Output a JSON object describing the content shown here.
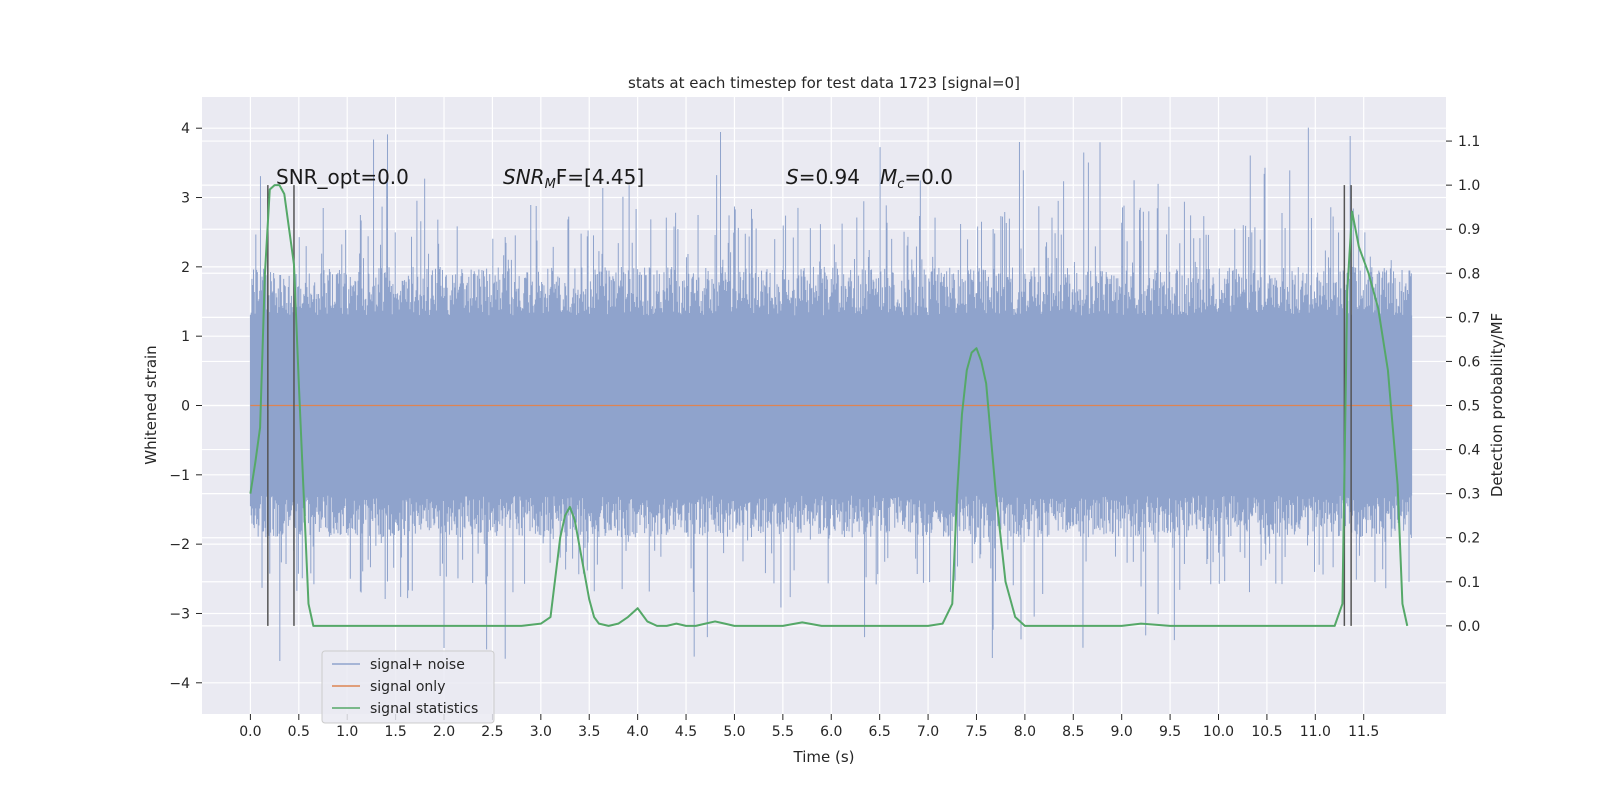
{
  "chart_data": {
    "type": "line",
    "title": "stats at each timestep for test data 1723 [signal=0]",
    "xlabel": "Time (s)",
    "ylabel_left": "Whitened strain",
    "ylabel_right": "Detection probability/MF",
    "xlim": [
      -0.5,
      12.35
    ],
    "ylim_left": [
      -4.45,
      4.45
    ],
    "ylim_right": [
      -0.2,
      1.2
    ],
    "x_ticks": [
      0.0,
      0.5,
      1.0,
      1.5,
      2.0,
      2.5,
      3.0,
      3.5,
      4.0,
      4.5,
      5.0,
      5.5,
      6.0,
      6.5,
      7.0,
      7.5,
      8.0,
      8.5,
      9.0,
      9.5,
      10.0,
      10.5,
      11.0,
      11.5
    ],
    "x_tick_labels": [
      "0.0",
      "0.5",
      "1.0",
      "1.5",
      "2.0",
      "2.5",
      "3.0",
      "3.5",
      "4.0",
      "4.5",
      "5.0",
      "5.5",
      "6.0",
      "6.5",
      "7.0",
      "7.5",
      "8.0",
      "8.5",
      "9.0",
      "9.5",
      "10.0",
      "10.5",
      "11.0",
      "11.5"
    ],
    "y_left_ticks": [
      4,
      3,
      2,
      1,
      0,
      -1,
      -2,
      -3,
      -4
    ],
    "y_left_tick_labels": [
      "4",
      "3",
      "2",
      "1",
      "0",
      "−1",
      "−2",
      "−3",
      "−4"
    ],
    "y_right_ticks": [
      1.1,
      1.0,
      0.9,
      0.8,
      0.7,
      0.6,
      0.5,
      0.4,
      0.3,
      0.2,
      0.1,
      0.0
    ],
    "y_right_tick_labels": [
      "1.1",
      "1.0",
      "0.9",
      "0.8",
      "0.7",
      "0.6",
      "0.5",
      "0.4",
      "0.3",
      "0.2",
      "0.1",
      "0.0"
    ],
    "grid": true,
    "legend_position": "lower-left",
    "series": [
      {
        "name": "signal+ noise",
        "axis": "left",
        "color": "#8fa3cc",
        "description_values": {
          "x_range": [
            0.0,
            12.0
          ],
          "band_upper": 1.3,
          "band_lower": -1.3,
          "spike_max_approx": 4.1,
          "spike_min_approx": -4.0
        }
      },
      {
        "name": "signal only",
        "axis": "left",
        "color": "#dd8452",
        "x": [
          0.0,
          12.0
        ],
        "y": [
          0.0,
          0.0
        ]
      },
      {
        "name": "signal statistics",
        "axis": "right",
        "color": "#55a868",
        "x": [
          0.0,
          0.05,
          0.1,
          0.15,
          0.2,
          0.25,
          0.3,
          0.35,
          0.4,
          0.45,
          0.5,
          0.55,
          0.6,
          0.65,
          0.7,
          0.8,
          1.0,
          1.5,
          2.0,
          2.5,
          2.8,
          3.0,
          3.1,
          3.2,
          3.25,
          3.3,
          3.35,
          3.4,
          3.5,
          3.55,
          3.6,
          3.7,
          3.8,
          3.9,
          4.0,
          4.1,
          4.2,
          4.3,
          4.4,
          4.5,
          4.6,
          4.7,
          4.8,
          4.9,
          5.0,
          5.5,
          5.7,
          5.9,
          6.5,
          7.0,
          7.15,
          7.25,
          7.3,
          7.35,
          7.4,
          7.45,
          7.5,
          7.55,
          7.6,
          7.7,
          7.8,
          7.9,
          8.0,
          8.5,
          9.0,
          9.2,
          9.5,
          10.0,
          10.5,
          11.0,
          11.2,
          11.28,
          11.33,
          11.38,
          11.45,
          11.55,
          11.65,
          11.75,
          11.85,
          11.9,
          11.95
        ],
        "y": [
          0.3,
          0.37,
          0.45,
          0.8,
          0.99,
          1.0,
          1.0,
          0.98,
          0.9,
          0.82,
          0.55,
          0.3,
          0.05,
          0.0,
          0.0,
          0.0,
          0.0,
          0.0,
          0.0,
          0.0,
          0.0,
          0.005,
          0.02,
          0.2,
          0.25,
          0.27,
          0.24,
          0.18,
          0.06,
          0.02,
          0.005,
          0.0,
          0.005,
          0.02,
          0.04,
          0.01,
          0.0,
          0.0,
          0.005,
          0.0,
          0.0,
          0.005,
          0.01,
          0.005,
          0.0,
          0.0,
          0.008,
          0.0,
          0.0,
          0.0,
          0.005,
          0.05,
          0.3,
          0.48,
          0.58,
          0.62,
          0.63,
          0.6,
          0.55,
          0.3,
          0.1,
          0.02,
          0.0,
          0.0,
          0.0,
          0.005,
          0.0,
          0.0,
          0.0,
          0.0,
          0.0,
          0.05,
          0.76,
          0.94,
          0.86,
          0.8,
          0.72,
          0.58,
          0.32,
          0.05,
          0.0
        ]
      }
    ],
    "vertical_markers": [
      0.18,
      0.45,
      11.3,
      11.37
    ],
    "vertical_marker_color": "#555555",
    "annotations": {
      "snr_opt": "SNR_opt=0.0",
      "snr_mf_prefix": "SNR",
      "snr_mf_sub": "M",
      "snr_mf_rest": "F=[4.45]",
      "s_var": "S",
      "s_val": "=0.94",
      "mc_var": "M",
      "mc_sub": "c",
      "mc_val": "=0.0"
    },
    "legend": [
      {
        "label": "signal+ noise",
        "color": "#8fa3cc"
      },
      {
        "label": "signal only",
        "color": "#dd8452"
      },
      {
        "label": "signal statistics",
        "color": "#55a868"
      }
    ],
    "colors": {
      "plot_background": "#eaeaf2",
      "grid": "#ffffff"
    }
  }
}
